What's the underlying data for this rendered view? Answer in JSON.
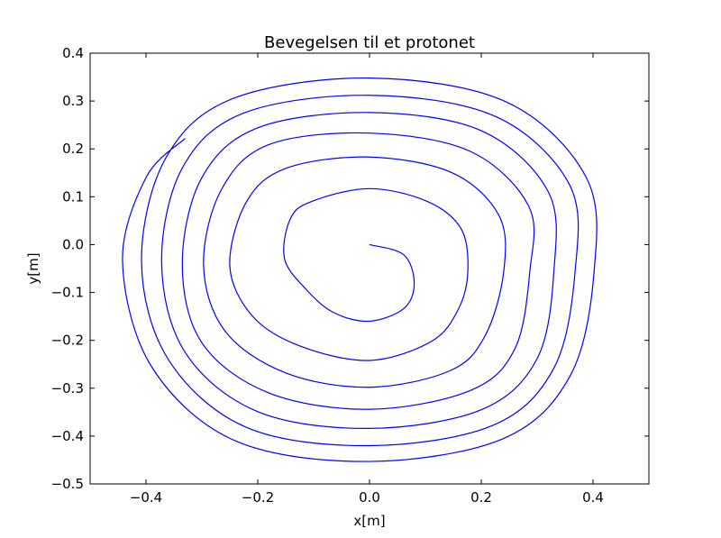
{
  "chart_data": {
    "type": "line",
    "title": "Bevegelsen til et protonet",
    "xlabel": "x[m]",
    "ylabel": "y[m]",
    "xlim": [
      -0.5,
      0.5
    ],
    "ylim": [
      -0.5,
      0.4
    ],
    "xticks": [
      -0.4,
      -0.2,
      0.0,
      0.2,
      0.4
    ],
    "xtick_labels": [
      "−0.4",
      "−0.2",
      "0.0",
      "0.2",
      "0.4"
    ],
    "yticks": [
      -0.5,
      -0.4,
      -0.3,
      -0.2,
      -0.1,
      0.0,
      0.1,
      0.2,
      0.3,
      0.4
    ],
    "ytick_labels": [
      "−0.5",
      "−0.4",
      "−0.3",
      "−0.2",
      "−0.1",
      "0.0",
      "0.1",
      "0.2",
      "0.3",
      "0.4"
    ],
    "grid": false,
    "series": [
      {
        "color": "#0000ff",
        "points": [
          [
            0.0,
            0.0
          ],
          [
            0.061,
            -0.021
          ],
          [
            0.08,
            -0.08
          ],
          [
            0.062,
            -0.133
          ],
          [
            0.0,
            -0.16
          ],
          [
            -0.064,
            -0.142
          ],
          [
            -0.113,
            -0.094
          ],
          [
            -0.152,
            -0.03
          ],
          [
            -0.142,
            0.053
          ],
          [
            -0.104,
            0.09
          ],
          [
            0.0,
            0.117
          ],
          [
            0.104,
            0.09
          ],
          [
            0.164,
            0.033
          ],
          [
            0.176,
            -0.055
          ],
          [
            0.159,
            -0.135
          ],
          [
            0.111,
            -0.202
          ],
          [
            0.0,
            -0.242
          ],
          [
            -0.124,
            -0.212
          ],
          [
            -0.209,
            -0.15
          ],
          [
            -0.25,
            -0.045
          ],
          [
            -0.22,
            0.09
          ],
          [
            -0.148,
            0.16
          ],
          [
            0.0,
            0.183
          ],
          [
            0.148,
            0.15
          ],
          [
            0.232,
            0.06
          ],
          [
            0.24,
            -0.058
          ],
          [
            0.207,
            -0.19
          ],
          [
            0.145,
            -0.263
          ],
          [
            0.0,
            -0.298
          ],
          [
            -0.15,
            -0.268
          ],
          [
            -0.259,
            -0.18
          ],
          [
            -0.297,
            -0.042
          ],
          [
            -0.265,
            0.115
          ],
          [
            -0.18,
            0.209
          ],
          [
            0.0,
            0.233
          ],
          [
            0.18,
            0.195
          ],
          [
            0.285,
            0.08
          ],
          [
            0.287,
            -0.055
          ],
          [
            0.26,
            -0.218
          ],
          [
            0.18,
            -0.305
          ],
          [
            0.0,
            -0.344
          ],
          [
            -0.18,
            -0.31
          ],
          [
            -0.3,
            -0.205
          ],
          [
            -0.335,
            -0.04
          ],
          [
            -0.3,
            0.14
          ],
          [
            -0.2,
            0.244
          ],
          [
            0.0,
            0.276
          ],
          [
            0.2,
            0.238
          ],
          [
            0.32,
            0.11
          ],
          [
            0.33,
            -0.055
          ],
          [
            0.3,
            -0.238
          ],
          [
            0.2,
            -0.345
          ],
          [
            0.0,
            -0.384
          ],
          [
            -0.2,
            -0.349
          ],
          [
            -0.33,
            -0.225
          ],
          [
            -0.372,
            -0.038
          ],
          [
            -0.335,
            0.16
          ],
          [
            -0.225,
            0.275
          ],
          [
            0.0,
            0.312
          ],
          [
            0.225,
            0.268
          ],
          [
            0.358,
            0.125
          ],
          [
            0.368,
            -0.055
          ],
          [
            0.33,
            -0.258
          ],
          [
            0.22,
            -0.378
          ],
          [
            0.0,
            -0.42
          ],
          [
            -0.22,
            -0.382
          ],
          [
            -0.36,
            -0.24
          ],
          [
            -0.408,
            -0.036
          ],
          [
            -0.365,
            0.18
          ],
          [
            -0.245,
            0.305
          ],
          [
            0.0,
            0.348
          ],
          [
            0.245,
            0.298
          ],
          [
            0.388,
            0.14
          ],
          [
            0.402,
            -0.055
          ],
          [
            0.36,
            -0.272
          ],
          [
            0.24,
            -0.405
          ],
          [
            0.0,
            -0.453
          ],
          [
            -0.24,
            -0.41
          ],
          [
            -0.39,
            -0.255
          ],
          [
            -0.442,
            -0.035
          ],
          [
            -0.4,
            0.14
          ],
          [
            -0.33,
            0.222
          ]
        ]
      }
    ]
  }
}
